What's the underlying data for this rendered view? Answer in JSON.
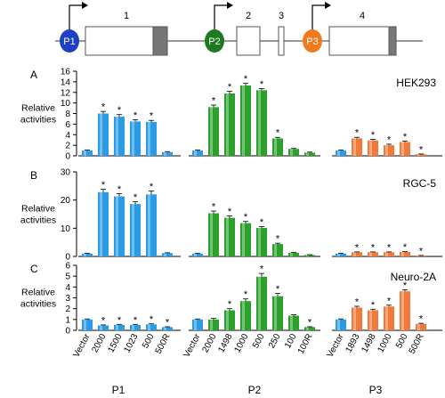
{
  "gene_map": {
    "exon_labels": [
      "1",
      "2",
      "3",
      "4"
    ],
    "promoters": [
      {
        "label": "P1",
        "color": "#1f3fc8"
      },
      {
        "label": "P2",
        "color": "#1e7a1e"
      },
      {
        "label": "P3",
        "color": "#f07a1e"
      }
    ]
  },
  "colors": {
    "P1": "#2a9be6",
    "P2": "#2ba02b",
    "P3": "#f07a3a",
    "vector": "#2a9be6"
  },
  "chart_data": [
    {
      "type": "bar",
      "panel_letter": "A",
      "cell_line": "HEK293",
      "ylabel": "Relative activities",
      "ylim": [
        0,
        16
      ],
      "yticks": [
        0,
        2,
        4,
        6,
        8,
        10,
        12,
        14,
        16
      ],
      "groups": [
        {
          "name": "P1",
          "categories": [
            "Vector",
            "2000",
            "1500",
            "1023",
            "500",
            "500R"
          ],
          "values": [
            1.0,
            8.0,
            7.4,
            6.5,
            6.4,
            0.7
          ],
          "errors": [
            0.1,
            0.4,
            0.4,
            0.3,
            0.3,
            0.1
          ],
          "significant": [
            false,
            true,
            true,
            true,
            true,
            false
          ]
        },
        {
          "name": "P2",
          "categories": [
            "Vector",
            "2000",
            "1498",
            "1000",
            "500",
            "250",
            "100",
            "100R"
          ],
          "values": [
            1.0,
            9.2,
            11.8,
            13.3,
            12.4,
            3.3,
            1.3,
            0.6
          ],
          "errors": [
            0.1,
            0.4,
            0.4,
            0.4,
            0.3,
            0.2,
            0.1,
            0.1
          ],
          "significant": [
            false,
            true,
            true,
            true,
            true,
            true,
            false,
            false
          ]
        },
        {
          "name": "P3",
          "categories": [
            "Vector",
            "1893",
            "1498",
            "1000",
            "500",
            "500R"
          ],
          "values": [
            1.0,
            3.3,
            2.9,
            2.0,
            2.6,
            0.3
          ],
          "errors": [
            0.1,
            0.2,
            0.2,
            0.2,
            0.2,
            0.05
          ],
          "significant": [
            false,
            true,
            true,
            true,
            true,
            true
          ]
        }
      ]
    },
    {
      "type": "bar",
      "panel_letter": "B",
      "cell_line": "RGC-5",
      "ylabel": "Relative activities",
      "ylim": [
        0,
        30
      ],
      "yticks": [
        0,
        10,
        20,
        30
      ],
      "groups": [
        {
          "name": "P1",
          "categories": [
            "Vector",
            "2000",
            "1500",
            "1023",
            "500",
            "500R"
          ],
          "values": [
            1.0,
            22.8,
            21.3,
            18.6,
            22.0,
            1.2
          ],
          "errors": [
            0.1,
            1.0,
            1.0,
            0.8,
            1.2,
            0.1
          ],
          "significant": [
            false,
            true,
            true,
            true,
            true,
            false
          ]
        },
        {
          "name": "P2",
          "categories": [
            "Vector",
            "2000",
            "1498",
            "1000",
            "500",
            "250",
            "100",
            "100R"
          ],
          "values": [
            1.0,
            15.3,
            13.7,
            11.8,
            10.1,
            4.4,
            1.3,
            0.5
          ],
          "errors": [
            0.1,
            0.8,
            0.7,
            0.6,
            0.5,
            0.3,
            0.1,
            0.1
          ],
          "significant": [
            false,
            true,
            true,
            true,
            true,
            true,
            false,
            false
          ]
        },
        {
          "name": "P3",
          "categories": [
            "Vector",
            "1893",
            "1498",
            "1000",
            "500",
            "500R"
          ],
          "values": [
            1.0,
            1.5,
            1.5,
            1.5,
            1.6,
            0.3
          ],
          "errors": [
            0.1,
            0.1,
            0.1,
            0.1,
            0.1,
            0.05
          ],
          "significant": [
            false,
            true,
            true,
            true,
            true,
            true
          ]
        }
      ]
    },
    {
      "type": "bar",
      "panel_letter": "C",
      "cell_line": "Neuro-2A",
      "ylabel": "Relative activities",
      "ylim": [
        0,
        6
      ],
      "yticks": [
        0,
        1,
        2,
        3,
        4,
        5,
        6
      ],
      "groups": [
        {
          "name": "P1",
          "categories": [
            "Vector",
            "2000",
            "1500",
            "1023",
            "500",
            "500R"
          ],
          "values": [
            1.0,
            0.45,
            0.5,
            0.5,
            0.55,
            0.3
          ],
          "errors": [
            0.05,
            0.05,
            0.05,
            0.05,
            0.05,
            0.03
          ],
          "significant": [
            false,
            true,
            true,
            true,
            true,
            true
          ]
        },
        {
          "name": "P2",
          "categories": [
            "Vector",
            "2000",
            "1498",
            "1000",
            "500",
            "250",
            "100",
            "100R"
          ],
          "values": [
            1.0,
            1.0,
            1.85,
            2.7,
            4.95,
            3.15,
            1.35,
            0.3
          ],
          "errors": [
            0.05,
            0.1,
            0.15,
            0.2,
            0.3,
            0.25,
            0.08,
            0.03
          ],
          "significant": [
            false,
            false,
            true,
            true,
            true,
            true,
            false,
            true
          ]
        },
        {
          "name": "P3",
          "categories": [
            "Vector",
            "1893",
            "1498",
            "1000",
            "500",
            "500R"
          ],
          "values": [
            1.0,
            2.1,
            1.85,
            2.2,
            3.6,
            0.6
          ],
          "errors": [
            0.05,
            0.12,
            0.1,
            0.12,
            0.15,
            0.05
          ],
          "significant": [
            false,
            true,
            true,
            true,
            true,
            true
          ]
        }
      ]
    }
  ],
  "group_labels": [
    "P1",
    "P2",
    "P3"
  ],
  "significance_marker": "*"
}
